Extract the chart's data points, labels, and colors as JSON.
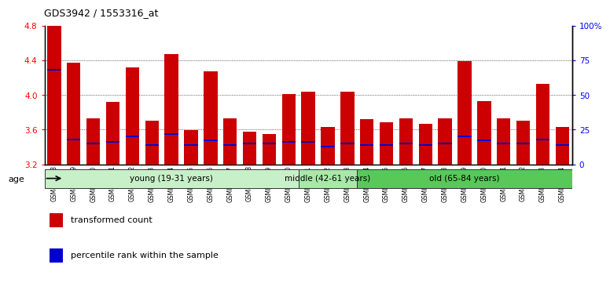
{
  "title": "GDS3942 / 1553316_at",
  "samples": [
    "GSM812988",
    "GSM812989",
    "GSM812990",
    "GSM812991",
    "GSM812992",
    "GSM812993",
    "GSM812994",
    "GSM812995",
    "GSM812996",
    "GSM812997",
    "GSM812998",
    "GSM812999",
    "GSM813000",
    "GSM813001",
    "GSM813002",
    "GSM813003",
    "GSM813004",
    "GSM813005",
    "GSM813006",
    "GSM813007",
    "GSM813008",
    "GSM813009",
    "GSM813010",
    "GSM813011",
    "GSM813012",
    "GSM813013",
    "GSM813014"
  ],
  "transformed_count": [
    4.8,
    4.37,
    3.73,
    3.92,
    4.32,
    3.7,
    4.47,
    3.59,
    4.27,
    3.73,
    3.58,
    3.55,
    4.01,
    4.04,
    3.63,
    4.04,
    3.72,
    3.68,
    3.73,
    3.67,
    3.73,
    4.39,
    3.93,
    3.73,
    3.7,
    4.13,
    3.63
  ],
  "percentile_rank": [
    68,
    18,
    15,
    16,
    20,
    14,
    22,
    14,
    17,
    14,
    15,
    15,
    16,
    16,
    13,
    15,
    14,
    14,
    15,
    14,
    15,
    20,
    17,
    15,
    15,
    18,
    14
  ],
  "groups": [
    {
      "label": "young (19-31 years)",
      "start": 0,
      "end": 13,
      "color": "#c8f0c8"
    },
    {
      "label": "middle (42-61 years)",
      "start": 13,
      "end": 16,
      "color": "#a8e8a8"
    },
    {
      "label": "old (65-84 years)",
      "start": 16,
      "end": 27,
      "color": "#58c858"
    }
  ],
  "ylim_left": [
    3.2,
    4.8
  ],
  "ylim_right": [
    0,
    100
  ],
  "yticks_left": [
    3.2,
    3.6,
    4.0,
    4.4,
    4.8
  ],
  "yticks_right": [
    0,
    25,
    50,
    75,
    100
  ],
  "ytick_labels_right": [
    "0",
    "25",
    "50",
    "75",
    "100%"
  ],
  "bar_color": "#cc0000",
  "percentile_color": "#0000cc",
  "bar_width": 0.7,
  "background_color": "#ffffff",
  "age_label": "age",
  "legend_items": [
    {
      "label": "transformed count",
      "color": "#cc0000"
    },
    {
      "label": "percentile rank within the sample",
      "color": "#0000cc"
    }
  ]
}
